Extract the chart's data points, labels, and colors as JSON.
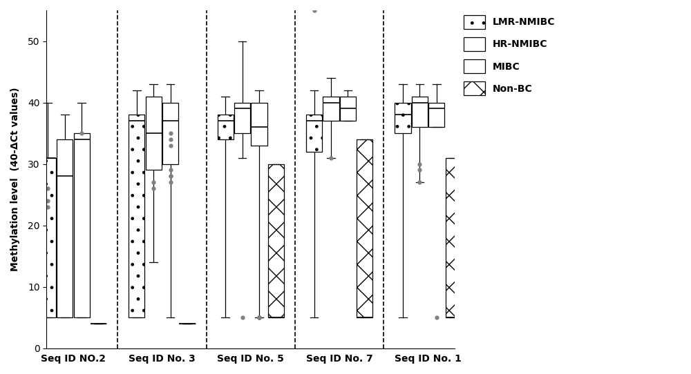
{
  "title": "",
  "ylabel": "Methylation level  (40-ΔCt values)",
  "ylim": [
    0,
    55
  ],
  "yticks": [
    0,
    10,
    20,
    30,
    40,
    50
  ],
  "groups": [
    "Seq ID NO.2",
    "Seq ID No. 3",
    "Seq ID No. 5",
    "Seq ID No. 7",
    "Seq ID No. 1"
  ],
  "categories": [
    "LMR-NMIBC",
    "HR-NMIBC",
    "MIBC",
    "Non-BC"
  ],
  "legend_labels": [
    "LMR-NMIBC",
    "HR-NMIBC",
    "MIBC",
    "Non-BC"
  ],
  "box_data": {
    "Seq ID NO.2": {
      "LMR-NMIBC": {
        "q1": 5,
        "median": 31,
        "q3": 31,
        "whislo": 5,
        "whishi": 40,
        "fliers": [
          26,
          24,
          23
        ]
      },
      "HR-NMIBC": {
        "q1": 5,
        "median": 28,
        "q3": 34,
        "whislo": 5,
        "whishi": 38,
        "fliers": []
      },
      "MIBC": {
        "q1": 5,
        "median": 34,
        "q3": 35,
        "whislo": 5,
        "whishi": 40,
        "fliers": [
          35
        ]
      },
      "Non-BC": {
        "q1": 4,
        "median": 4,
        "q3": 4,
        "whislo": 4,
        "whishi": 4,
        "fliers": []
      }
    },
    "Seq ID No. 3": {
      "LMR-NMIBC": {
        "q1": 5,
        "median": 37,
        "q3": 38,
        "whislo": 5,
        "whishi": 42,
        "fliers": []
      },
      "HR-NMIBC": {
        "q1": 29,
        "median": 35,
        "q3": 41,
        "whislo": 14,
        "whishi": 43,
        "fliers": [
          26,
          27
        ]
      },
      "MIBC": {
        "q1": 30,
        "median": 37,
        "q3": 40,
        "whislo": 5,
        "whishi": 43,
        "fliers": [
          27,
          28,
          28,
          29,
          33,
          34,
          35
        ]
      },
      "Non-BC": {
        "q1": 4,
        "median": 4,
        "q3": 4,
        "whislo": 4,
        "whishi": 4,
        "fliers": []
      }
    },
    "Seq ID No. 5": {
      "LMR-NMIBC": {
        "q1": 34,
        "median": 37,
        "q3": 38,
        "whislo": 5,
        "whishi": 41,
        "fliers": []
      },
      "HR-NMIBC": {
        "q1": 35,
        "median": 39,
        "q3": 40,
        "whislo": 31,
        "whishi": 50,
        "fliers": [
          5
        ]
      },
      "MIBC": {
        "q1": 33,
        "median": 36,
        "q3": 40,
        "whislo": 5,
        "whishi": 42,
        "fliers": [
          5,
          5,
          5,
          5,
          5
        ]
      },
      "Non-BC": {
        "q1": 5,
        "median": 5,
        "q3": 30,
        "whislo": 5,
        "whishi": 30,
        "fliers": []
      }
    },
    "Seq ID No. 7": {
      "LMR-NMIBC": {
        "q1": 32,
        "median": 37,
        "q3": 38,
        "whislo": 5,
        "whishi": 42,
        "fliers": [
          55
        ]
      },
      "HR-NMIBC": {
        "q1": 37,
        "median": 40,
        "q3": 41,
        "whislo": 31,
        "whishi": 44,
        "fliers": [
          31
        ]
      },
      "MIBC": {
        "q1": 37,
        "median": 39,
        "q3": 41,
        "whislo": 37,
        "whishi": 42,
        "fliers": []
      },
      "Non-BC": {
        "q1": 5,
        "median": 5,
        "q3": 34,
        "whislo": 5,
        "whishi": 34,
        "fliers": []
      }
    },
    "Seq ID No. 1": {
      "LMR-NMIBC": {
        "q1": 35,
        "median": 38,
        "q3": 40,
        "whislo": 5,
        "whishi": 43,
        "fliers": []
      },
      "HR-NMIBC": {
        "q1": 36,
        "median": 40,
        "q3": 41,
        "whislo": 27,
        "whishi": 43,
        "fliers": [
          27,
          29,
          30
        ]
      },
      "MIBC": {
        "q1": 36,
        "median": 39,
        "q3": 40,
        "whislo": 36,
        "whishi": 43,
        "fliers": [
          5
        ]
      },
      "Non-BC": {
        "q1": 5,
        "median": 5,
        "q3": 31,
        "whislo": 5,
        "whishi": 31,
        "fliers": []
      }
    }
  }
}
